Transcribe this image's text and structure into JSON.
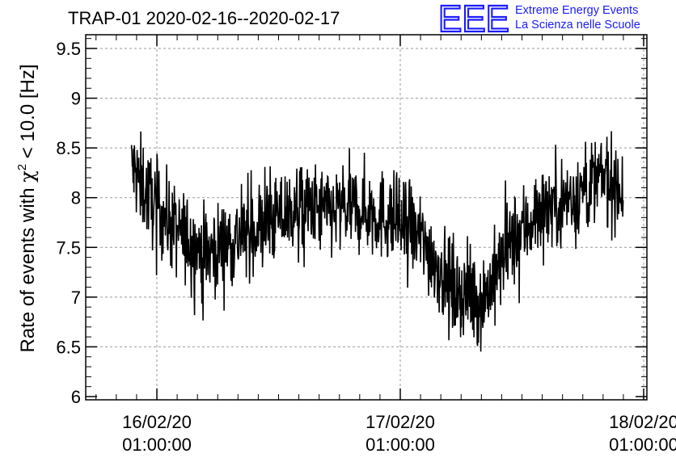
{
  "chart_data": {
    "type": "line",
    "title": "TRAP-01 2020-02-16--2020-02-17",
    "ylabel_parts": {
      "pre": "Rate of events with ",
      "sym": "χ",
      "sup": "2",
      "post": " < 10.0 [Hz]"
    },
    "ylim": [
      6.0,
      9.6
    ],
    "y_ticks": [
      "6",
      "6.5",
      "7",
      "7.5",
      "8",
      "8.5",
      "9",
      "9.5"
    ],
    "x_ticks": [
      {
        "date": "16/02/20",
        "time": "01:00:00"
      },
      {
        "date": "17/02/20",
        "time": "01:00:00"
      },
      {
        "date": "18/02/20",
        "time": "01:00:00"
      }
    ],
    "grid": true,
    "series": [
      {
        "color": "#000000",
        "x": [
          "2020-02-15 22:30",
          "2020-02-16 00:00",
          "2020-02-16 03:00",
          "2020-02-16 06:00",
          "2020-02-16 09:00",
          "2020-02-16 12:00",
          "2020-02-16 15:00",
          "2020-02-16 18:00",
          "2020-02-16 21:00",
          "2020-02-17 00:00",
          "2020-02-17 03:00",
          "2020-02-17 06:00",
          "2020-02-17 09:00",
          "2020-02-17 12:00",
          "2020-02-17 15:00",
          "2020-02-17 18:00",
          "2020-02-17 21:00",
          "2020-02-17 23:00"
        ],
        "y": [
          8.3,
          8.05,
          7.65,
          7.45,
          7.6,
          7.75,
          7.9,
          7.85,
          7.9,
          7.8,
          7.6,
          7.1,
          6.95,
          7.55,
          7.9,
          8.0,
          8.2,
          8.1
        ]
      }
    ]
  },
  "logo": {
    "letters": "EEE",
    "line1": "Extreme Energy Events",
    "line2": "La Scienza nelle Scuole",
    "color": "#1a1aff"
  }
}
